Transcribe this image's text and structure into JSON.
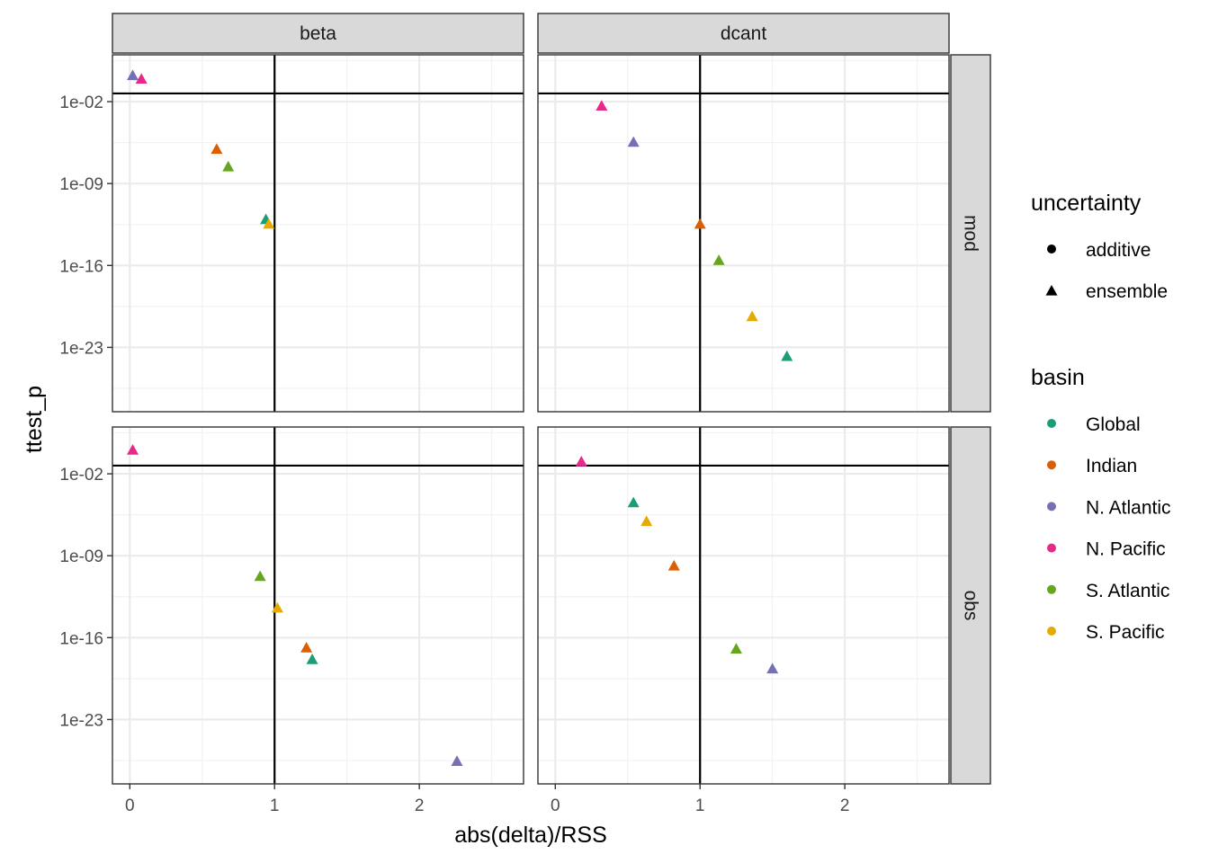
{
  "chart_data": {
    "type": "scatter",
    "xlabel": "abs(delta)/RSS",
    "ylabel": "ttest_p",
    "xlim": [
      -0.12,
      2.72
    ],
    "y_log10_lim": [
      2.0,
      -28.5
    ],
    "x_ticks": [
      0,
      1,
      2
    ],
    "x_tick_labels": [
      "0",
      "1",
      "2"
    ],
    "y_ticks_log10": [
      -2,
      -9,
      -16,
      -23
    ],
    "y_tick_labels": [
      "1e-02",
      "1e-09",
      "1e-16",
      "1e-23"
    ],
    "y_minor_log10": [
      1.5,
      -5.5,
      -12.5,
      -19.5,
      -26.5
    ],
    "hline_log10": -1.3,
    "vline_x": 1,
    "facet_cols": [
      "beta",
      "dcant"
    ],
    "facet_rows": [
      "mod",
      "obs"
    ],
    "legends": {
      "uncertainty": {
        "title": "uncertainty",
        "items": [
          {
            "label": "additive",
            "shape": "circle"
          },
          {
            "label": "ensemble",
            "shape": "triangle"
          }
        ]
      },
      "basin": {
        "title": "basin",
        "items": [
          {
            "label": "Global",
            "color": "#1b9e77"
          },
          {
            "label": "Indian",
            "color": "#d95f02"
          },
          {
            "label": "N. Atlantic",
            "color": "#7570b3"
          },
          {
            "label": "N. Pacific",
            "color": "#e7298a"
          },
          {
            "label": "S. Atlantic",
            "color": "#66a61e"
          },
          {
            "label": "S. Pacific",
            "color": "#e6ab02"
          }
        ]
      }
    },
    "points": [
      {
        "row": "mod",
        "col": "beta",
        "basin": "N. Atlantic",
        "uncertainty": "ensemble",
        "x": 0.02,
        "log10_p": 0.2
      },
      {
        "row": "mod",
        "col": "beta",
        "basin": "N. Pacific",
        "uncertainty": "ensemble",
        "x": 0.08,
        "log10_p": -0.1
      },
      {
        "row": "mod",
        "col": "beta",
        "basin": "Indian",
        "uncertainty": "ensemble",
        "x": 0.6,
        "log10_p": -6.1
      },
      {
        "row": "mod",
        "col": "beta",
        "basin": "S. Atlantic",
        "uncertainty": "ensemble",
        "x": 0.68,
        "log10_p": -7.6
      },
      {
        "row": "mod",
        "col": "beta",
        "basin": "Global",
        "uncertainty": "ensemble",
        "x": 0.94,
        "log10_p": -12.1
      },
      {
        "row": "mod",
        "col": "beta",
        "basin": "S. Pacific",
        "uncertainty": "ensemble",
        "x": 0.96,
        "log10_p": -12.5
      },
      {
        "row": "mod",
        "col": "dcant",
        "basin": "N. Pacific",
        "uncertainty": "ensemble",
        "x": 0.32,
        "log10_p": -2.4
      },
      {
        "row": "mod",
        "col": "dcant",
        "basin": "N. Atlantic",
        "uncertainty": "ensemble",
        "x": 0.54,
        "log10_p": -5.5
      },
      {
        "row": "mod",
        "col": "dcant",
        "basin": "Indian",
        "uncertainty": "ensemble",
        "x": 1.0,
        "log10_p": -12.5
      },
      {
        "row": "mod",
        "col": "dcant",
        "basin": "S. Atlantic",
        "uncertainty": "ensemble",
        "x": 1.13,
        "log10_p": -15.6
      },
      {
        "row": "mod",
        "col": "dcant",
        "basin": "S. Pacific",
        "uncertainty": "ensemble",
        "x": 1.36,
        "log10_p": -20.4
      },
      {
        "row": "mod",
        "col": "dcant",
        "basin": "Global",
        "uncertainty": "ensemble",
        "x": 1.6,
        "log10_p": -23.8
      },
      {
        "row": "obs",
        "col": "beta",
        "basin": "N. Pacific",
        "uncertainty": "ensemble",
        "x": 0.02,
        "log10_p": 0.0
      },
      {
        "row": "obs",
        "col": "beta",
        "basin": "S. Atlantic",
        "uncertainty": "ensemble",
        "x": 0.9,
        "log10_p": -10.8
      },
      {
        "row": "obs",
        "col": "beta",
        "basin": "S. Pacific",
        "uncertainty": "ensemble",
        "x": 1.02,
        "log10_p": -13.5
      },
      {
        "row": "obs",
        "col": "beta",
        "basin": "Indian",
        "uncertainty": "ensemble",
        "x": 1.22,
        "log10_p": -16.9
      },
      {
        "row": "obs",
        "col": "beta",
        "basin": "Global",
        "uncertainty": "ensemble",
        "x": 1.26,
        "log10_p": -17.9
      },
      {
        "row": "obs",
        "col": "beta",
        "basin": "N. Atlantic",
        "uncertainty": "ensemble",
        "x": 2.26,
        "log10_p": -26.6
      },
      {
        "row": "obs",
        "col": "dcant",
        "basin": "N. Pacific",
        "uncertainty": "ensemble",
        "x": 0.18,
        "log10_p": -1.0
      },
      {
        "row": "obs",
        "col": "dcant",
        "basin": "Global",
        "uncertainty": "ensemble",
        "x": 0.54,
        "log10_p": -4.5
      },
      {
        "row": "obs",
        "col": "dcant",
        "basin": "S. Pacific",
        "uncertainty": "ensemble",
        "x": 0.63,
        "log10_p": -6.1
      },
      {
        "row": "obs",
        "col": "dcant",
        "basin": "Indian",
        "uncertainty": "ensemble",
        "x": 0.82,
        "log10_p": -9.9
      },
      {
        "row": "obs",
        "col": "dcant",
        "basin": "S. Atlantic",
        "uncertainty": "ensemble",
        "x": 1.25,
        "log10_p": -17.0
      },
      {
        "row": "obs",
        "col": "dcant",
        "basin": "N. Atlantic",
        "uncertainty": "ensemble",
        "x": 1.5,
        "log10_p": -18.7
      }
    ]
  }
}
